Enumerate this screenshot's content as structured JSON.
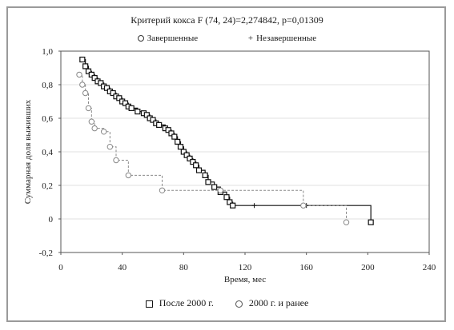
{
  "chart_data": {
    "type": "line",
    "title": "Критерий кокса F (74, 24)=2,274842, p=0,01309",
    "censor_legend": {
      "complete": "Завершенные",
      "censored": "Незавершенные"
    },
    "xlabel": "Время, мес",
    "ylabel": "Суммарная доля выживших",
    "xlim": [
      0,
      240
    ],
    "ylim": [
      -0.2,
      1.0
    ],
    "xticks": [
      "0",
      "40",
      "80",
      "120",
      "160",
      "200",
      "240"
    ],
    "yticks": [
      "-0,2",
      "0",
      "0,2",
      "0,4",
      "0,6",
      "0,8",
      "1,0"
    ],
    "series": [
      {
        "name": "После 2000 г.",
        "color": "#111111",
        "steps": [
          [
            14,
            0.95
          ],
          [
            16,
            0.91
          ],
          [
            18,
            0.88
          ],
          [
            20,
            0.86
          ],
          [
            22,
            0.84
          ],
          [
            24,
            0.82
          ],
          [
            26,
            0.81
          ],
          [
            28,
            0.79
          ],
          [
            30,
            0.78
          ],
          [
            32,
            0.76
          ],
          [
            34,
            0.75
          ],
          [
            36,
            0.73
          ],
          [
            38,
            0.72
          ],
          [
            40,
            0.7
          ],
          [
            42,
            0.69
          ],
          [
            44,
            0.67
          ],
          [
            46,
            0.66
          ],
          [
            50,
            0.64
          ],
          [
            54,
            0.63
          ],
          [
            56,
            0.62
          ],
          [
            58,
            0.6
          ],
          [
            60,
            0.59
          ],
          [
            62,
            0.57
          ],
          [
            64,
            0.56
          ],
          [
            68,
            0.54
          ],
          [
            70,
            0.53
          ],
          [
            72,
            0.51
          ],
          [
            74,
            0.49
          ],
          [
            76,
            0.46
          ],
          [
            78,
            0.43
          ],
          [
            80,
            0.4
          ],
          [
            82,
            0.38
          ],
          [
            84,
            0.36
          ],
          [
            86,
            0.34
          ],
          [
            88,
            0.32
          ],
          [
            90,
            0.29
          ],
          [
            94,
            0.26
          ],
          [
            96,
            0.22
          ],
          [
            100,
            0.19
          ],
          [
            104,
            0.16
          ],
          [
            108,
            0.13
          ],
          [
            110,
            0.1
          ],
          [
            112,
            0.08
          ],
          [
            200,
            0.08
          ],
          [
            202,
            -0.02
          ]
        ],
        "complete_markers": [
          [
            14,
            0.95
          ],
          [
            16,
            0.91
          ],
          [
            18,
            0.88
          ],
          [
            20,
            0.86
          ],
          [
            22,
            0.84
          ],
          [
            24,
            0.82
          ],
          [
            26,
            0.81
          ],
          [
            28,
            0.79
          ],
          [
            30,
            0.78
          ],
          [
            32,
            0.76
          ],
          [
            34,
            0.75
          ],
          [
            36,
            0.73
          ],
          [
            38,
            0.72
          ],
          [
            40,
            0.7
          ],
          [
            42,
            0.69
          ],
          [
            44,
            0.67
          ],
          [
            46,
            0.66
          ],
          [
            50,
            0.64
          ],
          [
            54,
            0.63
          ],
          [
            56,
            0.62
          ],
          [
            58,
            0.6
          ],
          [
            60,
            0.59
          ],
          [
            62,
            0.57
          ],
          [
            64,
            0.56
          ],
          [
            68,
            0.54
          ],
          [
            70,
            0.53
          ],
          [
            72,
            0.51
          ],
          [
            74,
            0.49
          ],
          [
            76,
            0.46
          ],
          [
            78,
            0.43
          ],
          [
            80,
            0.4
          ],
          [
            82,
            0.38
          ],
          [
            84,
            0.36
          ],
          [
            86,
            0.34
          ],
          [
            88,
            0.32
          ],
          [
            90,
            0.29
          ],
          [
            94,
            0.26
          ],
          [
            96,
            0.22
          ],
          [
            100,
            0.19
          ],
          [
            104,
            0.16
          ],
          [
            108,
            0.13
          ],
          [
            110,
            0.1
          ],
          [
            112,
            0.08
          ],
          [
            202,
            -0.02
          ]
        ],
        "censored_markers": [
          [
            126,
            0.08
          ],
          [
            160,
            0.08
          ]
        ]
      },
      {
        "name": "2000 г. и ранее",
        "color": "#888888",
        "steps": [
          [
            12,
            0.86
          ],
          [
            14,
            0.8
          ],
          [
            16,
            0.75
          ],
          [
            18,
            0.66
          ],
          [
            20,
            0.58
          ],
          [
            22,
            0.54
          ],
          [
            28,
            0.52
          ],
          [
            32,
            0.43
          ],
          [
            36,
            0.35
          ],
          [
            44,
            0.26
          ],
          [
            66,
            0.17
          ],
          [
            104,
            0.17
          ],
          [
            158,
            0.08
          ],
          [
            184,
            0.08
          ],
          [
            186,
            -0.02
          ]
        ],
        "complete_markers": [
          [
            12,
            0.86
          ],
          [
            14,
            0.8
          ],
          [
            16,
            0.75
          ],
          [
            18,
            0.66
          ],
          [
            20,
            0.58
          ],
          [
            22,
            0.54
          ],
          [
            28,
            0.52
          ],
          [
            32,
            0.43
          ],
          [
            36,
            0.35
          ],
          [
            44,
            0.26
          ],
          [
            66,
            0.17
          ],
          [
            104,
            0.17
          ],
          [
            158,
            0.08
          ],
          [
            186,
            -0.02
          ]
        ],
        "censored_markers": []
      }
    ],
    "legend_placement": "bottom",
    "grid": true
  }
}
